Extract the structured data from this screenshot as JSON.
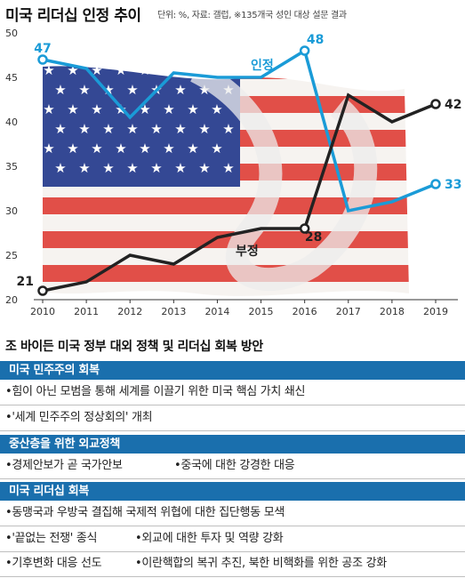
{
  "header": {
    "title": "미국 리더십 인정 추이",
    "source": "단위: %, 자료: 갤럽, ※135개국 성인 대상 설문 결과"
  },
  "chart_data": {
    "type": "line",
    "x": [
      2010,
      2011,
      2012,
      2013,
      2014,
      2015,
      2016,
      2017,
      2018,
      2019
    ],
    "ylim": [
      20,
      50
    ],
    "yticks": [
      20,
      25,
      30,
      35,
      40,
      45,
      50
    ],
    "grid": false,
    "background_image": "us-flag",
    "series": [
      {
        "name": "인정",
        "color": "#1a9bd7",
        "values": [
          47,
          46,
          40.5,
          45.5,
          45,
          45,
          48,
          30,
          31,
          33
        ]
      },
      {
        "name": "부정",
        "color": "#222222",
        "values": [
          21,
          22,
          25,
          24,
          27,
          28,
          28,
          43,
          40,
          42
        ]
      }
    ],
    "end_labels": {
      "approve_2010": "47",
      "approve_2016": "48",
      "approve_2019": "33",
      "disapprove_2010": "21",
      "disapprove_2016": "28",
      "disapprove_2019": "42"
    }
  },
  "plan": {
    "title": "조 바이든 미국 정부 대외 정책 및 리더십 회복 방안",
    "groups": [
      {
        "header": "미국 민주주의 회복",
        "rows": [
          [
            "•힘이 아닌 모범을 통해 세계를 이끌기 위한 미국 핵심 가치 쇄신"
          ],
          [
            "•'세계 민주주의 정상회의' 개최"
          ]
        ]
      },
      {
        "header": "중산층을 위한 외교정책",
        "rows": [
          [
            "•경제안보가 곧 국가안보",
            "•중국에 대한 강경한 대응"
          ]
        ]
      },
      {
        "header": "미국 리더십 회복",
        "rows": [
          [
            "•동맹국과 우방국 결집해 국제적 위협에 대한 집단행동 모색"
          ],
          [
            "•'끝없는 전쟁' 종식",
            "•외교에 대한 투자 및 역량 강화"
          ],
          [
            "•기후변화 대응 선도",
            "•이란핵합의 복귀 추진, 북한 비핵화를 위한 공조 강화"
          ]
        ]
      }
    ]
  }
}
